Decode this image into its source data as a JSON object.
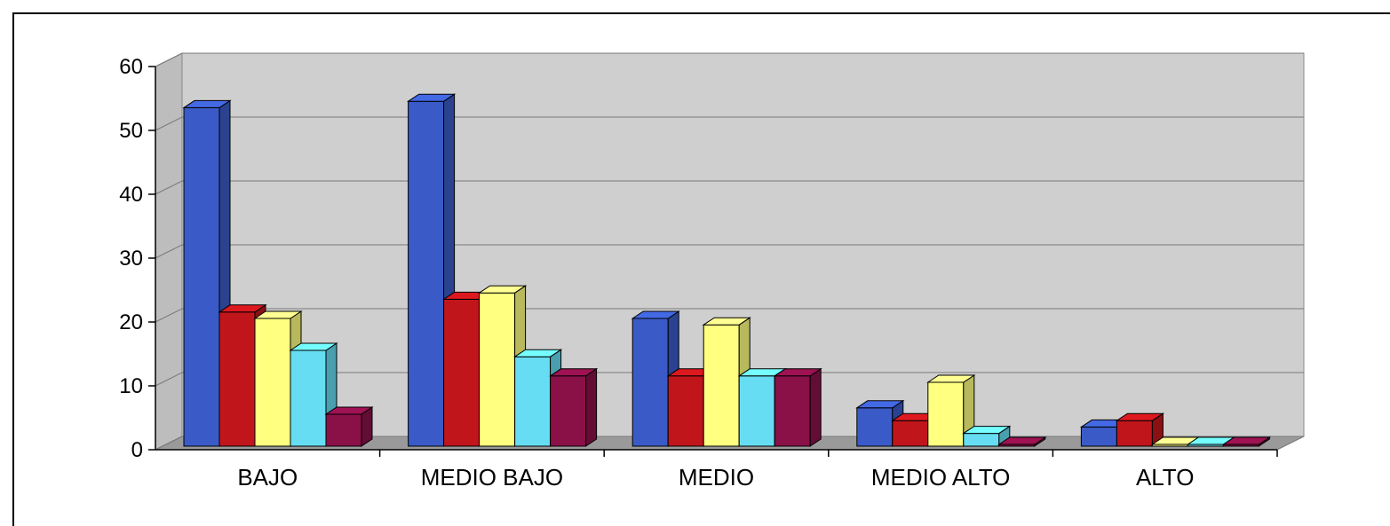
{
  "chart_data": {
    "type": "bar",
    "title": "",
    "xlabel": "",
    "ylabel": "",
    "ylim": [
      0,
      60
    ],
    "yticks": [
      "0",
      "10",
      "20",
      "30",
      "40",
      "50",
      "60"
    ],
    "grid": true,
    "legend": "none",
    "style": "3d-clustered-column",
    "categories": [
      "BAJO",
      "MEDIO BAJO",
      "MEDIO",
      "MEDIO ALTO",
      "ALTO"
    ],
    "series": [
      {
        "values": [
          53,
          54,
          20,
          6,
          3
        ],
        "color": "#3a5bc7"
      },
      {
        "values": [
          21,
          23,
          11,
          4,
          4
        ],
        "color": "#c0161b"
      },
      {
        "values": [
          20,
          24,
          19,
          10,
          0
        ],
        "color": "#ffff80"
      },
      {
        "values": [
          15,
          14,
          11,
          2,
          0
        ],
        "color": "#66ddf2"
      },
      {
        "values": [
          5,
          11,
          11,
          0,
          0
        ],
        "color": "#8a1048"
      }
    ]
  }
}
